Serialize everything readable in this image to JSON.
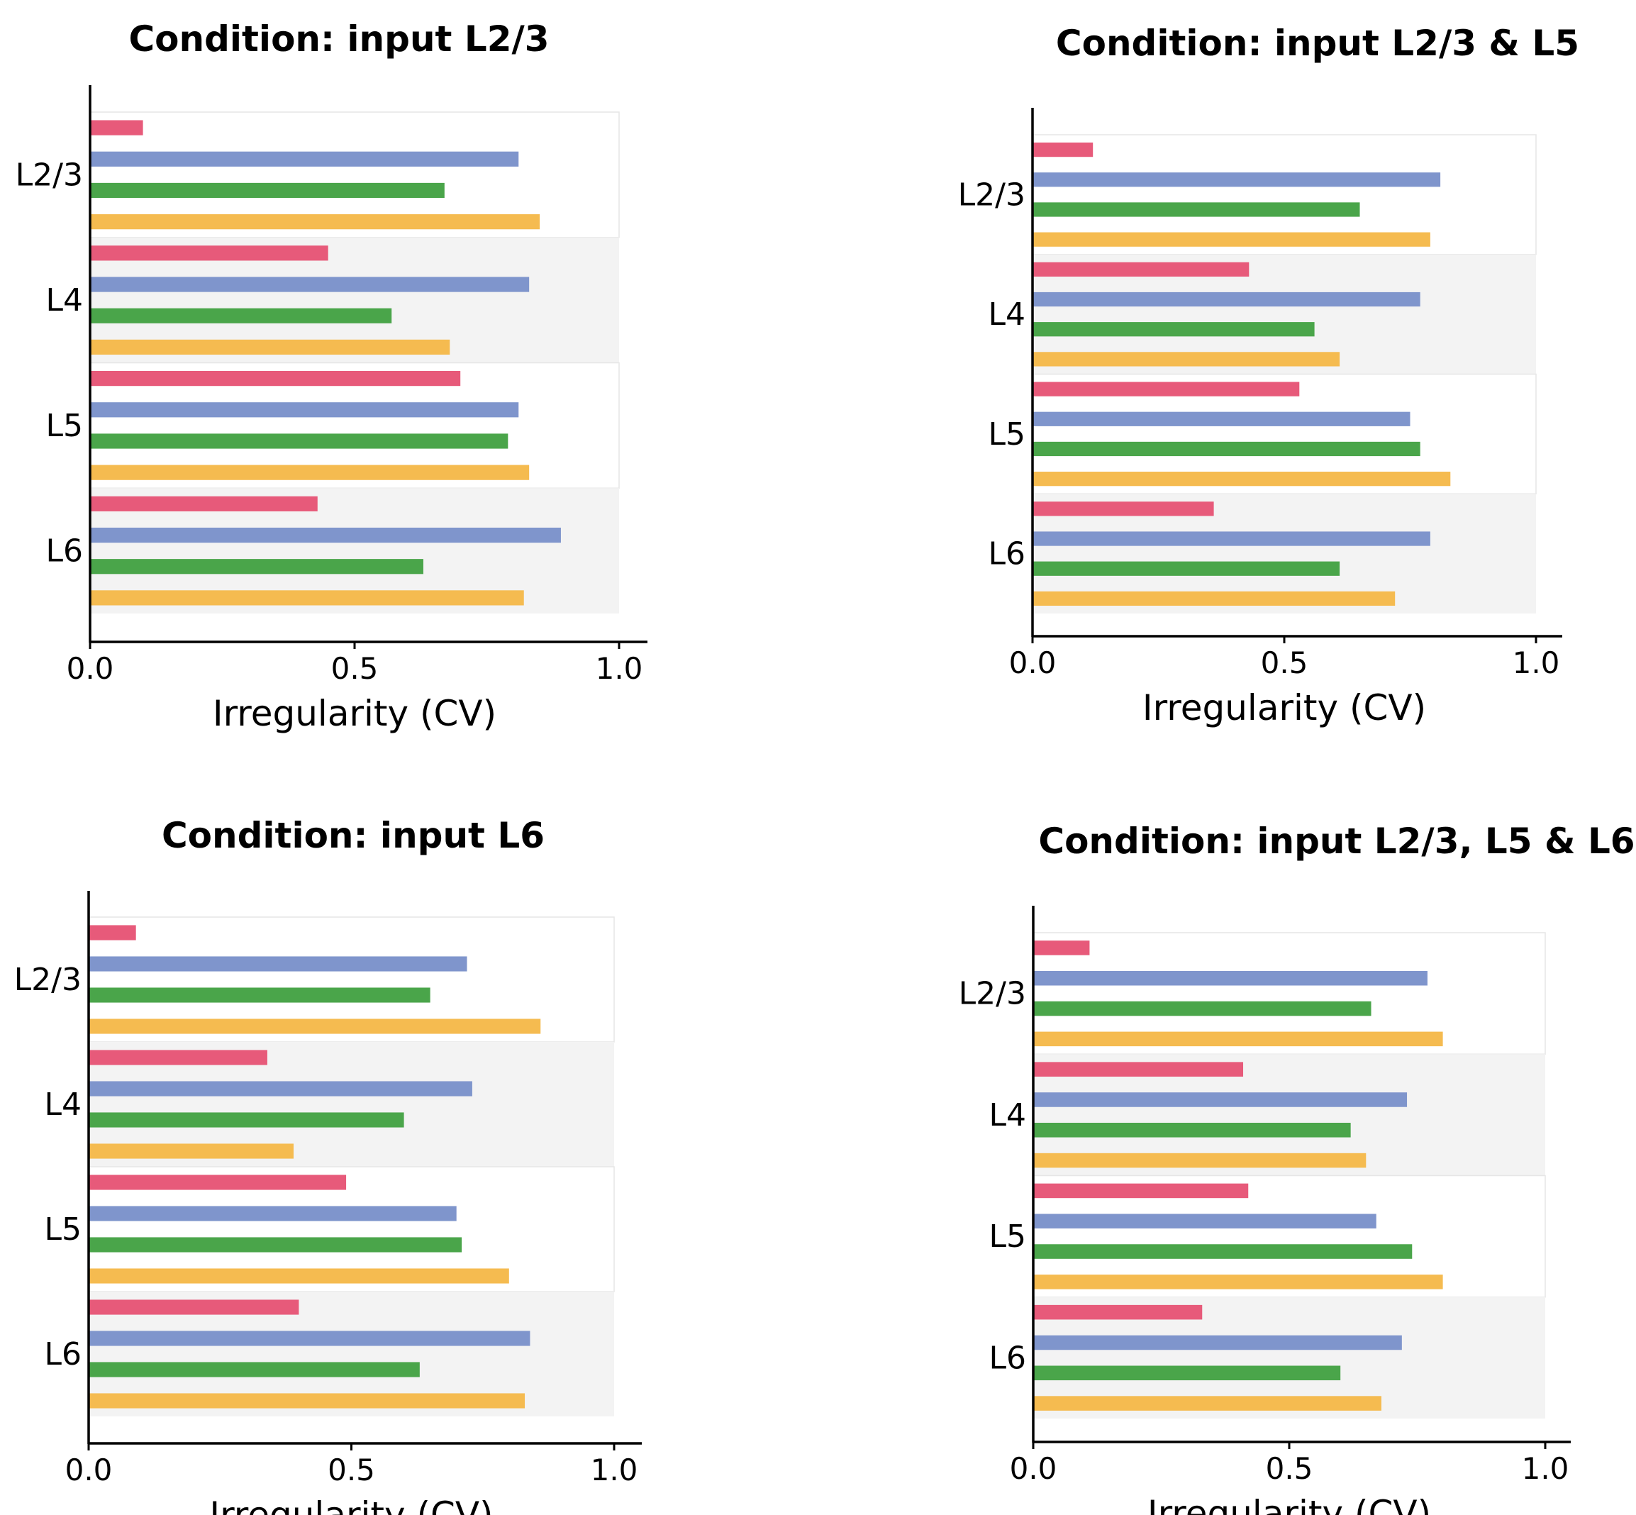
{
  "colors": {
    "series": [
      "#e75a7a",
      "#7f95cc",
      "#4aa54a",
      "#f5bb50"
    ],
    "band_shaded": "#f3f3f3",
    "band_plain": "#ffffff",
    "axis": "#000000"
  },
  "chart_data": [
    {
      "type": "bar",
      "orientation": "horizontal",
      "title": "Condition: input L2/3",
      "xlabel": "Irregularity (CV)",
      "xlim": [
        0,
        1.0
      ],
      "xticks": [
        "0.0",
        "0.5",
        "1.0"
      ],
      "categories": [
        "L2/3",
        "L4",
        "L5",
        "L6"
      ],
      "series": [
        {
          "values": [
            0.1,
            0.45,
            0.7,
            0.43
          ]
        },
        {
          "values": [
            0.81,
            0.83,
            0.81,
            0.89
          ]
        },
        {
          "values": [
            0.67,
            0.57,
            0.79,
            0.63
          ]
        },
        {
          "values": [
            0.85,
            0.68,
            0.83,
            0.82
          ]
        }
      ]
    },
    {
      "type": "bar",
      "orientation": "horizontal",
      "title": "Condition: input L2/3 & L5",
      "xlabel": "Irregularity (CV)",
      "xlim": [
        0,
        1.0
      ],
      "xticks": [
        "0.0",
        "0.5",
        "1.0"
      ],
      "categories": [
        "L2/3",
        "L4",
        "L5",
        "L6"
      ],
      "series": [
        {
          "values": [
            0.12,
            0.43,
            0.53,
            0.36
          ]
        },
        {
          "values": [
            0.81,
            0.77,
            0.75,
            0.79
          ]
        },
        {
          "values": [
            0.65,
            0.56,
            0.77,
            0.61
          ]
        },
        {
          "values": [
            0.79,
            0.61,
            0.83,
            0.72
          ]
        }
      ]
    },
    {
      "type": "bar",
      "orientation": "horizontal",
      "title": "Condition: input L6",
      "xlabel": "Irregularity (CV)",
      "xlim": [
        0,
        1.0
      ],
      "xticks": [
        "0.0",
        "0.5",
        "1.0"
      ],
      "categories": [
        "L2/3",
        "L4",
        "L5",
        "L6"
      ],
      "series": [
        {
          "values": [
            0.09,
            0.34,
            0.49,
            0.4
          ]
        },
        {
          "values": [
            0.72,
            0.73,
            0.7,
            0.84
          ]
        },
        {
          "values": [
            0.65,
            0.6,
            0.71,
            0.63
          ]
        },
        {
          "values": [
            0.86,
            0.39,
            0.8,
            0.83
          ]
        }
      ]
    },
    {
      "type": "bar",
      "orientation": "horizontal",
      "title": "Condition: input L2/3, L5 & L6",
      "xlabel": "Irregularity (CV)",
      "xlim": [
        0,
        1.0
      ],
      "xticks": [
        "0.0",
        "0.5",
        "1.0"
      ],
      "categories": [
        "L2/3",
        "L4",
        "L5",
        "L6"
      ],
      "series": [
        {
          "values": [
            0.11,
            0.41,
            0.42,
            0.33
          ]
        },
        {
          "values": [
            0.77,
            0.73,
            0.67,
            0.72
          ]
        },
        {
          "values": [
            0.66,
            0.62,
            0.74,
            0.6
          ]
        },
        {
          "values": [
            0.8,
            0.65,
            0.8,
            0.68
          ]
        }
      ]
    }
  ]
}
